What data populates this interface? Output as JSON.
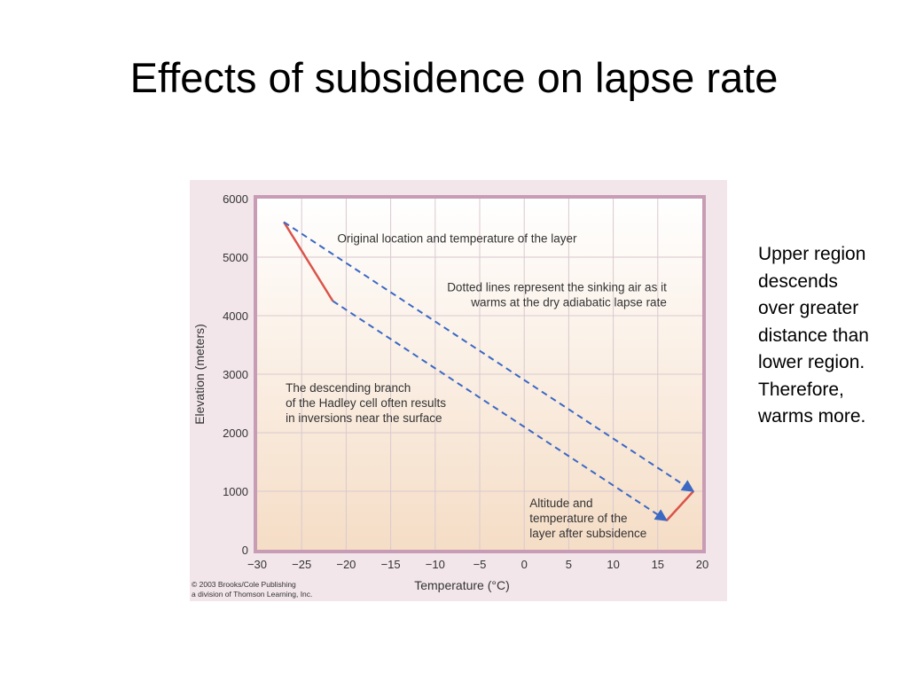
{
  "slide": {
    "title": "Effects of subsidence on lapse rate",
    "side_note_lines": [
      "Upper region",
      "descends",
      "over greater",
      "distance than",
      "lower region.",
      "Therefore,",
      "warms more."
    ]
  },
  "colors": {
    "figure_background": "#f2e6ea",
    "plot_border": "#c79cb4",
    "plot_fill_top": "#ffffff",
    "plot_fill_bottom": "#f5ddc6",
    "grid": "#d9c9cf",
    "layer_line": "#d9544a",
    "sinking_path": "#3b68c3"
  },
  "chart_data": {
    "type": "line",
    "xlabel": "Temperature (°C)",
    "ylabel": "Elevation (meters)",
    "xlim": [
      -30,
      20
    ],
    "ylim": [
      0,
      6000
    ],
    "x_ticks": [
      -30,
      -25,
      -20,
      -15,
      -10,
      -5,
      0,
      5,
      10,
      15,
      20
    ],
    "y_ticks": [
      0,
      1000,
      2000,
      3000,
      4000,
      5000,
      6000
    ],
    "x_tick_labels": [
      "−30",
      "−25",
      "−20",
      "−15",
      "−10",
      "−5",
      "0",
      "5",
      "10",
      "15",
      "20"
    ],
    "y_tick_labels": [
      "0",
      "1000",
      "2000",
      "3000",
      "4000",
      "5000",
      "6000"
    ],
    "grid": true,
    "series": [
      {
        "style": "solid",
        "x": [
          -27,
          -21.5
        ],
        "y": [
          5600,
          4250
        ]
      },
      {
        "style": "solid",
        "x": [
          16,
          19
        ],
        "y": [
          500,
          1000
        ]
      },
      {
        "style": "dashed-arrow",
        "x": [
          -27,
          19
        ],
        "y": [
          5600,
          1000
        ]
      },
      {
        "style": "dashed-arrow",
        "x": [
          -21.5,
          16
        ],
        "y": [
          4250,
          500
        ]
      }
    ],
    "annotations": [
      {
        "lines": [
          "Original location and temperature of the layer"
        ],
        "x": -21,
        "y": 5250,
        "anchor": "start"
      },
      {
        "lines": [
          "Dotted lines represent the sinking air as it",
          "warms at the dry adiabatic lapse rate"
        ],
        "x": 16,
        "y": 4420,
        "anchor": "end"
      },
      {
        "lines": [
          "The descending branch",
          "of the Hadley cell often results",
          "in inversions near the surface"
        ],
        "x": -26.8,
        "y": 2700,
        "anchor": "start"
      },
      {
        "lines": [
          "Altitude and",
          "temperature of the",
          "layer after subsidence"
        ],
        "x": 0.6,
        "y": 730,
        "anchor": "start"
      }
    ],
    "credit_lines": [
      "© 2003 Brooks/Cole Publishing",
      "a division of Thomson Learning, Inc."
    ]
  }
}
